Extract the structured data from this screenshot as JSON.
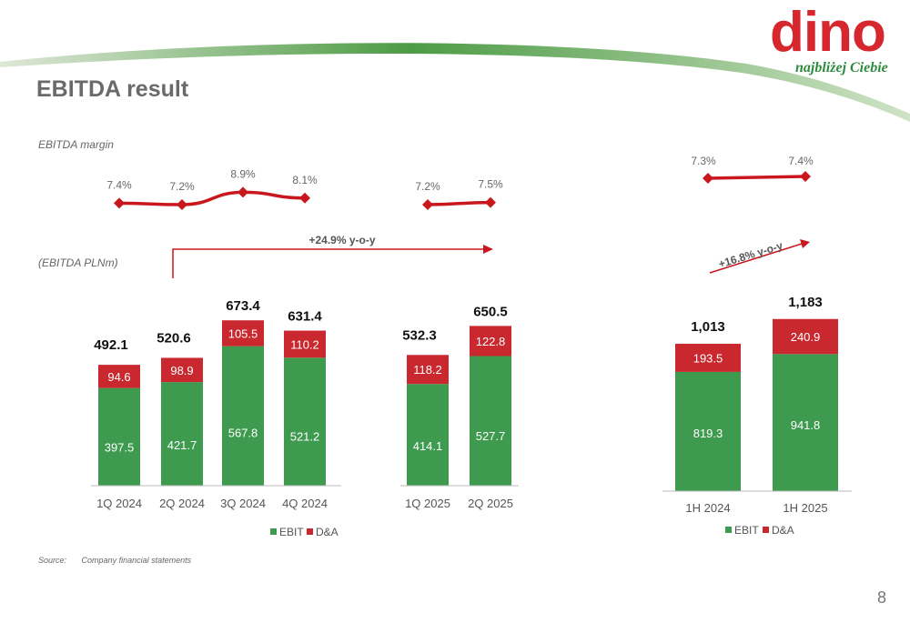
{
  "page": {
    "title": "EBITDA result",
    "margin_label": "EBITDA margin",
    "pln_label": "(EBITDA PLNm)",
    "source_label": "Source:",
    "source_text": "Company financial statements",
    "page_number": "8"
  },
  "logo": {
    "word": "dino",
    "tagline": "najbliżej Ciebie"
  },
  "colors": {
    "ebit": "#3d9a4e",
    "da": "#c8282e",
    "margin_line": "#c8181e",
    "arrow": "#c8181e",
    "text": "#555555",
    "brand_green": "#2f8c3d",
    "brand_red": "#d6262e"
  },
  "chart_data": [
    {
      "type": "line",
      "title": "EBITDA margin",
      "categories": [
        "1Q 2024",
        "2Q 2024",
        "3Q 2024",
        "4Q 2024",
        "1Q 2025",
        "2Q 2025"
      ],
      "values": [
        7.4,
        7.2,
        8.9,
        8.1,
        7.2,
        7.5
      ],
      "labels": [
        "7.4%",
        "7.2%",
        "8.9%",
        "8.1%",
        "7.2%",
        "7.5%"
      ]
    },
    {
      "type": "bar",
      "stacked": true,
      "ylabel": "(EBITDA PLNm)",
      "categories": [
        "1Q 2024",
        "2Q 2024",
        "3Q 2024",
        "4Q 2024",
        "1Q 2025",
        "2Q 2025"
      ],
      "series": [
        {
          "name": "EBIT",
          "values": [
            397.5,
            421.7,
            567.8,
            521.2,
            414.1,
            527.7
          ],
          "labels": [
            "397.5",
            "421.7",
            "567.8",
            "521.2",
            "414.1",
            "527.7"
          ]
        },
        {
          "name": "D&A",
          "values": [
            94.6,
            98.9,
            105.5,
            110.2,
            118.2,
            122.8
          ],
          "labels": [
            "94.6",
            "98.9",
            "105.5",
            "110.2",
            "118.2",
            "122.8"
          ]
        }
      ],
      "totals": [
        492.1,
        520.6,
        673.4,
        631.4,
        532.3,
        650.5
      ],
      "total_labels": [
        "492.1",
        "520.6",
        "673.4",
        "631.4",
        "532.3",
        "650.5"
      ],
      "annotation": "+24.9% y-o-y",
      "legend": [
        "EBIT",
        "D&A"
      ],
      "legend_position": "bottom"
    },
    {
      "type": "line",
      "title": "EBITDA margin",
      "categories": [
        "1H 2024",
        "1H 2025"
      ],
      "values": [
        7.3,
        7.4
      ],
      "labels": [
        "7.3%",
        "7.4%"
      ]
    },
    {
      "type": "bar",
      "stacked": true,
      "categories": [
        "1H 2024",
        "1H 2025"
      ],
      "series": [
        {
          "name": "EBIT",
          "values": [
            819.3,
            941.8
          ],
          "labels": [
            "819.3",
            "941.8"
          ]
        },
        {
          "name": "D&A",
          "values": [
            193.5,
            240.9
          ],
          "labels": [
            "193.5",
            "240.9"
          ]
        }
      ],
      "totals": [
        1013,
        1183
      ],
      "total_labels": [
        "1,013",
        "1,183"
      ],
      "annotation": "+16.8% y-o-y",
      "legend": [
        "EBIT",
        "D&A"
      ],
      "legend_position": "bottom"
    }
  ]
}
